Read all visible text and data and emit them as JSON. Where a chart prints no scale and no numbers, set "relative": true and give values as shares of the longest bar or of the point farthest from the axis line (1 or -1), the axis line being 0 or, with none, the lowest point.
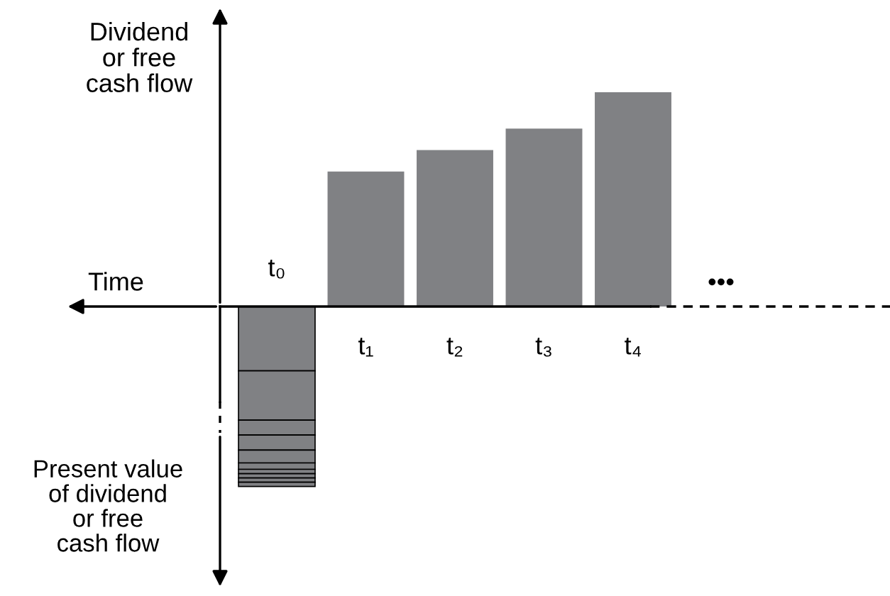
{
  "chart_data": {
    "type": "bar",
    "relative": true,
    "stacked": true,
    "xlabel": "Time",
    "ylabel": "Dividend\nor free\ncash flow",
    "categories": [
      "t₀",
      "t₁",
      "t₂",
      "t₃",
      "t₄"
    ],
    "series": [
      {
        "color": "#808184",
        "values": [
          null,
          0.63,
          0.73,
          0.83,
          1.0
        ]
      },
      {
        "color": "#808184",
        "values": [
          -0.3,
          null,
          null,
          null,
          null
        ]
      },
      {
        "color": "#808184",
        "values": [
          -0.23,
          null,
          null,
          null,
          null
        ]
      },
      {
        "color": "#808184",
        "values": [
          -0.07,
          null,
          null,
          null,
          null
        ]
      },
      {
        "color": "#808184",
        "values": [
          -0.07,
          null,
          null,
          null,
          null
        ]
      },
      {
        "color": "#808184",
        "values": [
          -0.06,
          null,
          null,
          null,
          null
        ]
      },
      {
        "color": "#808184",
        "values": [
          -0.03,
          null,
          null,
          null,
          null
        ]
      },
      {
        "color": "#808184",
        "values": [
          -0.02,
          null,
          null,
          null,
          null
        ]
      },
      {
        "color": "#808184",
        "values": [
          -0.02,
          null,
          null,
          null,
          null
        ]
      },
      {
        "color": "#808184",
        "values": [
          -0.02,
          null,
          null,
          null,
          null
        ]
      },
      {
        "color": "#808184",
        "values": [
          -0.02,
          null,
          null,
          null,
          null
        ]
      }
    ],
    "annotations": [
      "Present value\nof dividend\nor free\ncash flow",
      "•••"
    ]
  }
}
